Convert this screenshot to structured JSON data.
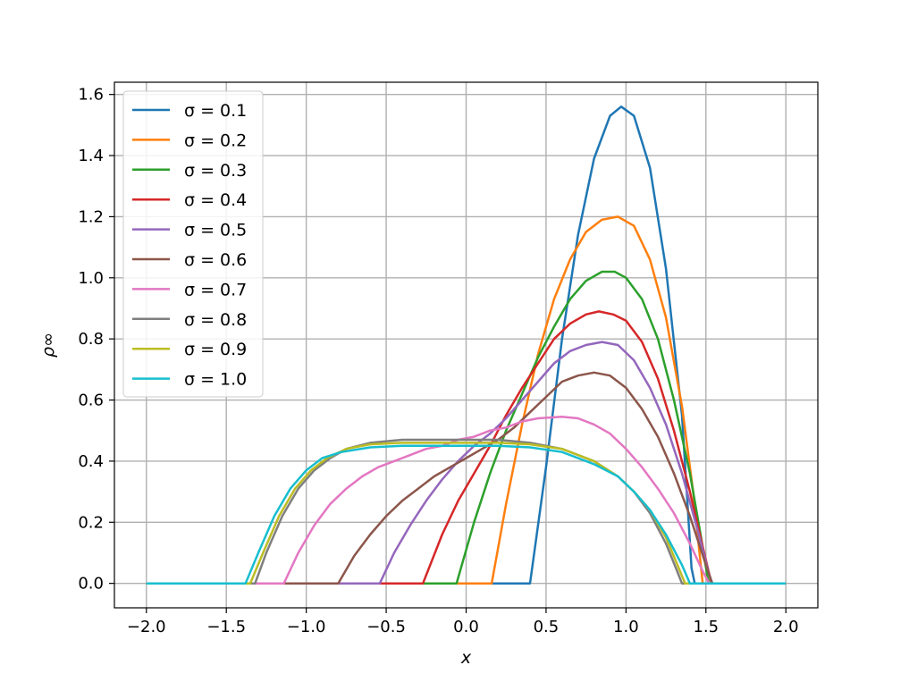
{
  "chart_data": {
    "type": "line",
    "title": "",
    "xlabel": "x",
    "ylabel": "ρ∞",
    "xlim": [
      -2.2,
      2.2
    ],
    "ylim": [
      -0.08,
      1.64
    ],
    "xticks": [
      -2.0,
      -1.5,
      -1.0,
      -0.5,
      0.0,
      0.5,
      1.0,
      1.5,
      2.0
    ],
    "xtick_labels": [
      "−2.0",
      "−1.5",
      "−1.0",
      "−0.5",
      "0.0",
      "0.5",
      "1.0",
      "1.5",
      "2.0"
    ],
    "yticks": [
      0.0,
      0.2,
      0.4,
      0.6,
      0.8,
      1.0,
      1.2,
      1.4,
      1.6
    ],
    "ytick_labels": [
      "0.0",
      "0.2",
      "0.4",
      "0.6",
      "0.8",
      "1.0",
      "1.2",
      "1.4",
      "1.6"
    ],
    "grid": true,
    "legend_position": "upper-left",
    "series": [
      {
        "name": "σ = 0.1",
        "color": "#1f77b4",
        "points": [
          [
            -2.0,
            0
          ],
          [
            0.4,
            0
          ],
          [
            0.5,
            0.38
          ],
          [
            0.6,
            0.8
          ],
          [
            0.7,
            1.14
          ],
          [
            0.8,
            1.39
          ],
          [
            0.9,
            1.53
          ],
          [
            0.97,
            1.56
          ],
          [
            1.05,
            1.53
          ],
          [
            1.15,
            1.36
          ],
          [
            1.25,
            1.03
          ],
          [
            1.35,
            0.55
          ],
          [
            1.41,
            0.05
          ],
          [
            1.43,
            0
          ],
          [
            2.0,
            0
          ]
        ]
      },
      {
        "name": "σ = 0.2",
        "color": "#ff7f0e",
        "points": [
          [
            -2.0,
            0
          ],
          [
            0.16,
            0
          ],
          [
            0.25,
            0.26
          ],
          [
            0.35,
            0.52
          ],
          [
            0.45,
            0.75
          ],
          [
            0.55,
            0.93
          ],
          [
            0.65,
            1.06
          ],
          [
            0.75,
            1.15
          ],
          [
            0.85,
            1.19
          ],
          [
            0.95,
            1.2
          ],
          [
            1.05,
            1.17
          ],
          [
            1.15,
            1.06
          ],
          [
            1.25,
            0.87
          ],
          [
            1.35,
            0.58
          ],
          [
            1.42,
            0.3
          ],
          [
            1.47,
            0.05
          ],
          [
            1.48,
            0
          ],
          [
            2.0,
            0
          ]
        ]
      },
      {
        "name": "σ = 0.3",
        "color": "#2ca02c",
        "points": [
          [
            -2.0,
            0
          ],
          [
            -0.06,
            0
          ],
          [
            0.05,
            0.2
          ],
          [
            0.15,
            0.36
          ],
          [
            0.25,
            0.5
          ],
          [
            0.35,
            0.62
          ],
          [
            0.45,
            0.74
          ],
          [
            0.55,
            0.84
          ],
          [
            0.65,
            0.93
          ],
          [
            0.75,
            0.99
          ],
          [
            0.85,
            1.02
          ],
          [
            0.93,
            1.02
          ],
          [
            1.0,
            1.0
          ],
          [
            1.1,
            0.93
          ],
          [
            1.2,
            0.8
          ],
          [
            1.3,
            0.6
          ],
          [
            1.4,
            0.36
          ],
          [
            1.47,
            0.15
          ],
          [
            1.51,
            0.02
          ],
          [
            1.52,
            0
          ],
          [
            2.0,
            0
          ]
        ]
      },
      {
        "name": "σ = 0.4",
        "color": "#d62728",
        "points": [
          [
            -2.0,
            0
          ],
          [
            -0.27,
            0
          ],
          [
            -0.15,
            0.16
          ],
          [
            -0.05,
            0.27
          ],
          [
            0.05,
            0.36
          ],
          [
            0.15,
            0.45
          ],
          [
            0.25,
            0.55
          ],
          [
            0.35,
            0.64
          ],
          [
            0.45,
            0.72
          ],
          [
            0.55,
            0.8
          ],
          [
            0.65,
            0.85
          ],
          [
            0.75,
            0.88
          ],
          [
            0.83,
            0.89
          ],
          [
            0.92,
            0.88
          ],
          [
            1.0,
            0.86
          ],
          [
            1.1,
            0.79
          ],
          [
            1.2,
            0.67
          ],
          [
            1.3,
            0.5
          ],
          [
            1.4,
            0.3
          ],
          [
            1.48,
            0.12
          ],
          [
            1.53,
            0.01
          ],
          [
            1.54,
            0
          ],
          [
            2.0,
            0
          ]
        ]
      },
      {
        "name": "σ = 0.5",
        "color": "#9467bd",
        "points": [
          [
            -2.0,
            0
          ],
          [
            -0.54,
            0
          ],
          [
            -0.45,
            0.1
          ],
          [
            -0.35,
            0.19
          ],
          [
            -0.25,
            0.27
          ],
          [
            -0.15,
            0.34
          ],
          [
            -0.05,
            0.4
          ],
          [
            0.05,
            0.45
          ],
          [
            0.15,
            0.49
          ],
          [
            0.25,
            0.54
          ],
          [
            0.35,
            0.6
          ],
          [
            0.45,
            0.66
          ],
          [
            0.55,
            0.72
          ],
          [
            0.65,
            0.76
          ],
          [
            0.75,
            0.78
          ],
          [
            0.85,
            0.79
          ],
          [
            0.95,
            0.78
          ],
          [
            1.05,
            0.73
          ],
          [
            1.15,
            0.64
          ],
          [
            1.25,
            0.52
          ],
          [
            1.35,
            0.36
          ],
          [
            1.45,
            0.17
          ],
          [
            1.52,
            0.03
          ],
          [
            1.54,
            0
          ],
          [
            2.0,
            0
          ]
        ]
      },
      {
        "name": "σ = 0.6",
        "color": "#8c564b",
        "points": [
          [
            -2.0,
            0
          ],
          [
            -0.8,
            0
          ],
          [
            -0.7,
            0.09
          ],
          [
            -0.6,
            0.16
          ],
          [
            -0.5,
            0.22
          ],
          [
            -0.4,
            0.27
          ],
          [
            -0.3,
            0.31
          ],
          [
            -0.2,
            0.35
          ],
          [
            -0.1,
            0.38
          ],
          [
            0.0,
            0.41
          ],
          [
            0.1,
            0.44
          ],
          [
            0.2,
            0.47
          ],
          [
            0.3,
            0.51
          ],
          [
            0.4,
            0.56
          ],
          [
            0.5,
            0.61
          ],
          [
            0.6,
            0.66
          ],
          [
            0.7,
            0.68
          ],
          [
            0.8,
            0.69
          ],
          [
            0.9,
            0.68
          ],
          [
            1.0,
            0.64
          ],
          [
            1.1,
            0.57
          ],
          [
            1.2,
            0.48
          ],
          [
            1.3,
            0.36
          ],
          [
            1.4,
            0.22
          ],
          [
            1.5,
            0.06
          ],
          [
            1.54,
            0
          ],
          [
            2.0,
            0
          ]
        ]
      },
      {
        "name": "σ = 0.7",
        "color": "#e377c2",
        "points": [
          [
            -2.0,
            0
          ],
          [
            -1.14,
            0
          ],
          [
            -1.05,
            0.1
          ],
          [
            -0.95,
            0.19
          ],
          [
            -0.85,
            0.26
          ],
          [
            -0.75,
            0.31
          ],
          [
            -0.65,
            0.35
          ],
          [
            -0.55,
            0.38
          ],
          [
            -0.45,
            0.4
          ],
          [
            -0.35,
            0.42
          ],
          [
            -0.25,
            0.44
          ],
          [
            -0.15,
            0.45
          ],
          [
            -0.05,
            0.47
          ],
          [
            0.05,
            0.48
          ],
          [
            0.15,
            0.5
          ],
          [
            0.25,
            0.51
          ],
          [
            0.35,
            0.53
          ],
          [
            0.45,
            0.54
          ],
          [
            0.6,
            0.545
          ],
          [
            0.7,
            0.54
          ],
          [
            0.8,
            0.52
          ],
          [
            0.9,
            0.49
          ],
          [
            1.0,
            0.44
          ],
          [
            1.1,
            0.38
          ],
          [
            1.2,
            0.31
          ],
          [
            1.3,
            0.23
          ],
          [
            1.4,
            0.13
          ],
          [
            1.48,
            0.04
          ],
          [
            1.52,
            0
          ],
          [
            2.0,
            0
          ]
        ]
      },
      {
        "name": "σ = 0.8",
        "color": "#7f7f7f",
        "points": [
          [
            -2.0,
            0
          ],
          [
            -1.32,
            0
          ],
          [
            -1.25,
            0.1
          ],
          [
            -1.15,
            0.22
          ],
          [
            -1.05,
            0.31
          ],
          [
            -0.95,
            0.37
          ],
          [
            -0.85,
            0.41
          ],
          [
            -0.75,
            0.44
          ],
          [
            -0.6,
            0.46
          ],
          [
            -0.4,
            0.47
          ],
          [
            -0.2,
            0.47
          ],
          [
            0.0,
            0.47
          ],
          [
            0.2,
            0.47
          ],
          [
            0.4,
            0.46
          ],
          [
            0.6,
            0.44
          ],
          [
            0.8,
            0.4
          ],
          [
            0.95,
            0.35
          ],
          [
            1.05,
            0.3
          ],
          [
            1.15,
            0.23
          ],
          [
            1.25,
            0.13
          ],
          [
            1.32,
            0.04
          ],
          [
            1.35,
            0
          ],
          [
            2.0,
            0
          ]
        ]
      },
      {
        "name": "σ = 0.9",
        "color": "#bcbd22",
        "points": [
          [
            -2.0,
            0
          ],
          [
            -1.35,
            0
          ],
          [
            -1.27,
            0.1
          ],
          [
            -1.17,
            0.22
          ],
          [
            -1.07,
            0.31
          ],
          [
            -0.97,
            0.37
          ],
          [
            -0.87,
            0.41
          ],
          [
            -0.75,
            0.44
          ],
          [
            -0.6,
            0.455
          ],
          [
            -0.4,
            0.46
          ],
          [
            -0.2,
            0.46
          ],
          [
            0.0,
            0.46
          ],
          [
            0.2,
            0.46
          ],
          [
            0.4,
            0.455
          ],
          [
            0.6,
            0.44
          ],
          [
            0.8,
            0.4
          ],
          [
            0.95,
            0.35
          ],
          [
            1.05,
            0.3
          ],
          [
            1.15,
            0.24
          ],
          [
            1.25,
            0.15
          ],
          [
            1.33,
            0.05
          ],
          [
            1.37,
            0
          ],
          [
            2.0,
            0
          ]
        ]
      },
      {
        "name": "σ = 1.0",
        "color": "#17becf",
        "points": [
          [
            -2.0,
            0
          ],
          [
            -1.38,
            0
          ],
          [
            -1.3,
            0.1
          ],
          [
            -1.2,
            0.22
          ],
          [
            -1.1,
            0.31
          ],
          [
            -1.0,
            0.37
          ],
          [
            -0.9,
            0.41
          ],
          [
            -0.78,
            0.43
          ],
          [
            -0.6,
            0.445
          ],
          [
            -0.4,
            0.45
          ],
          [
            -0.2,
            0.45
          ],
          [
            0.0,
            0.45
          ],
          [
            0.2,
            0.45
          ],
          [
            0.4,
            0.445
          ],
          [
            0.6,
            0.43
          ],
          [
            0.8,
            0.39
          ],
          [
            0.95,
            0.35
          ],
          [
            1.05,
            0.3
          ],
          [
            1.15,
            0.24
          ],
          [
            1.25,
            0.16
          ],
          [
            1.35,
            0.06
          ],
          [
            1.4,
            0
          ],
          [
            2.0,
            0
          ]
        ]
      }
    ]
  }
}
